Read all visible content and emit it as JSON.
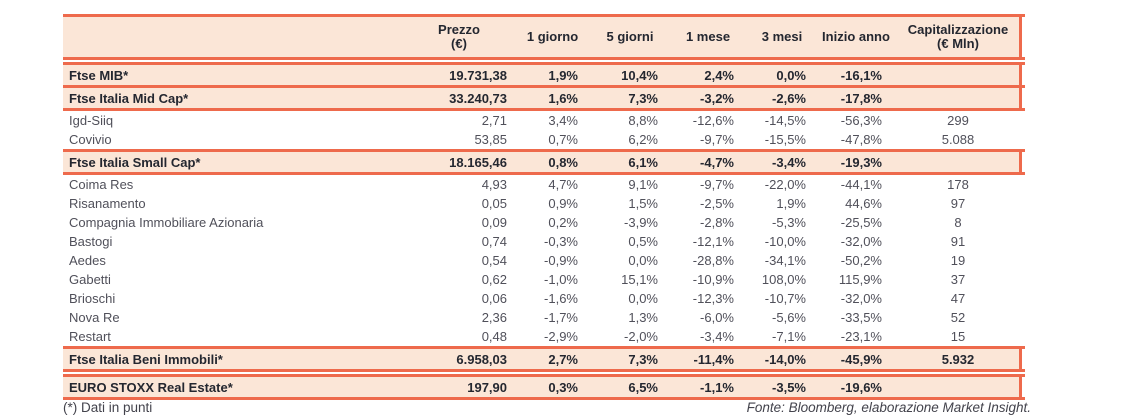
{
  "colors": {
    "rule": "#ee6a4c",
    "band": "#fbe6d7",
    "text_dark": "#242730",
    "text_body": "#50505a"
  },
  "table": {
    "columns": [
      {
        "key": "name",
        "label": "",
        "sublabel": ""
      },
      {
        "key": "prezzo",
        "label": "Prezzo",
        "sublabel": "(€)"
      },
      {
        "key": "g1",
        "label": "1 giorno",
        "sublabel": ""
      },
      {
        "key": "g5",
        "label": "5 giorni",
        "sublabel": ""
      },
      {
        "key": "m1",
        "label": "1 mese",
        "sublabel": ""
      },
      {
        "key": "m3",
        "label": "3 mesi",
        "sublabel": ""
      },
      {
        "key": "ytd",
        "label": "Inizio anno",
        "sublabel": ""
      },
      {
        "key": "cap",
        "label": "Capitalizzazione",
        "sublabel": "(€ Mln)"
      }
    ],
    "rows": [
      {
        "kind": "index",
        "gap_above": true,
        "name": "Ftse MIB*",
        "prezzo": "19.731,38",
        "g1": "1,9%",
        "g5": "10,4%",
        "m1": "2,4%",
        "m3": "0,0%",
        "ytd": "-16,1%",
        "cap": ""
      },
      {
        "kind": "index",
        "rule_above": true,
        "name": "Ftse Italia Mid Cap*",
        "prezzo": "33.240,73",
        "g1": "1,6%",
        "g5": "7,3%",
        "m1": "-3,2%",
        "m3": "-2,6%",
        "ytd": "-17,8%",
        "cap": ""
      },
      {
        "kind": "stock",
        "rule_above": true,
        "name": "Igd-Siiq",
        "prezzo": "2,71",
        "g1": "3,4%",
        "g5": "8,8%",
        "m1": "-12,6%",
        "m3": "-14,5%",
        "ytd": "-56,3%",
        "cap": "299"
      },
      {
        "kind": "stock",
        "name": "Covivio",
        "prezzo": "53,85",
        "g1": "0,7%",
        "g5": "6,2%",
        "m1": "-9,7%",
        "m3": "-15,5%",
        "ytd": "-47,8%",
        "cap": "5.088"
      },
      {
        "kind": "index",
        "rule_above": true,
        "name": "Ftse Italia Small Cap*",
        "prezzo": "18.165,46",
        "g1": "0,8%",
        "g5": "6,1%",
        "m1": "-4,7%",
        "m3": "-3,4%",
        "ytd": "-19,3%",
        "cap": ""
      },
      {
        "kind": "stock",
        "rule_above": true,
        "name": "Coima Res",
        "prezzo": "4,93",
        "g1": "4,7%",
        "g5": "9,1%",
        "m1": "-9,7%",
        "m3": "-22,0%",
        "ytd": "-44,1%",
        "cap": "178"
      },
      {
        "kind": "stock",
        "name": "Risanamento",
        "prezzo": "0,05",
        "g1": "0,9%",
        "g5": "1,5%",
        "m1": "-2,5%",
        "m3": "1,9%",
        "ytd": "44,6%",
        "cap": "97"
      },
      {
        "kind": "stock",
        "name": "Compagnia Immobiliare Azionaria",
        "prezzo": "0,09",
        "g1": "0,2%",
        "g5": "-3,9%",
        "m1": "-2,8%",
        "m3": "-5,3%",
        "ytd": "-25,5%",
        "cap": "8"
      },
      {
        "kind": "stock",
        "name": "Bastogi",
        "prezzo": "0,74",
        "g1": "-0,3%",
        "g5": "0,5%",
        "m1": "-12,1%",
        "m3": "-10,0%",
        "ytd": "-32,0%",
        "cap": "91"
      },
      {
        "kind": "stock",
        "name": "Aedes",
        "prezzo": "0,54",
        "g1": "-0,9%",
        "g5": "0,0%",
        "m1": "-28,8%",
        "m3": "-34,1%",
        "ytd": "-50,2%",
        "cap": "19"
      },
      {
        "kind": "stock",
        "name": "Gabetti",
        "prezzo": "0,62",
        "g1": "-1,0%",
        "g5": "15,1%",
        "m1": "-10,9%",
        "m3": "108,0%",
        "ytd": "115,9%",
        "cap": "37"
      },
      {
        "kind": "stock",
        "name": "Brioschi",
        "prezzo": "0,06",
        "g1": "-1,6%",
        "g5": "0,0%",
        "m1": "-12,3%",
        "m3": "-10,7%",
        "ytd": "-32,0%",
        "cap": "47"
      },
      {
        "kind": "stock",
        "name": "Nova Re",
        "prezzo": "2,36",
        "g1": "-1,7%",
        "g5": "1,3%",
        "m1": "-6,0%",
        "m3": "-5,6%",
        "ytd": "-33,5%",
        "cap": "52"
      },
      {
        "kind": "stock",
        "name": "Restart",
        "prezzo": "0,48",
        "g1": "-2,9%",
        "g5": "-2,0%",
        "m1": "-3,4%",
        "m3": "-7,1%",
        "ytd": "-23,1%",
        "cap": "15"
      },
      {
        "kind": "index",
        "rule_above": true,
        "name": "Ftse Italia Beni Immobili*",
        "prezzo": "6.958,03",
        "g1": "2,7%",
        "g5": "7,3%",
        "m1": "-11,4%",
        "m3": "-14,0%",
        "ytd": "-45,9%",
        "cap": "5.932"
      },
      {
        "kind": "index",
        "gap_above": true,
        "name": "EURO STOXX Real Estate*",
        "prezzo": "197,90",
        "g1": "0,3%",
        "g5": "6,5%",
        "m1": "-1,1%",
        "m3": "-3,5%",
        "ytd": "-19,6%",
        "cap": ""
      }
    ]
  },
  "footer": {
    "note": "(*) Dati in punti",
    "source": "Fonte: Bloomberg, elaborazione Market Insight."
  }
}
